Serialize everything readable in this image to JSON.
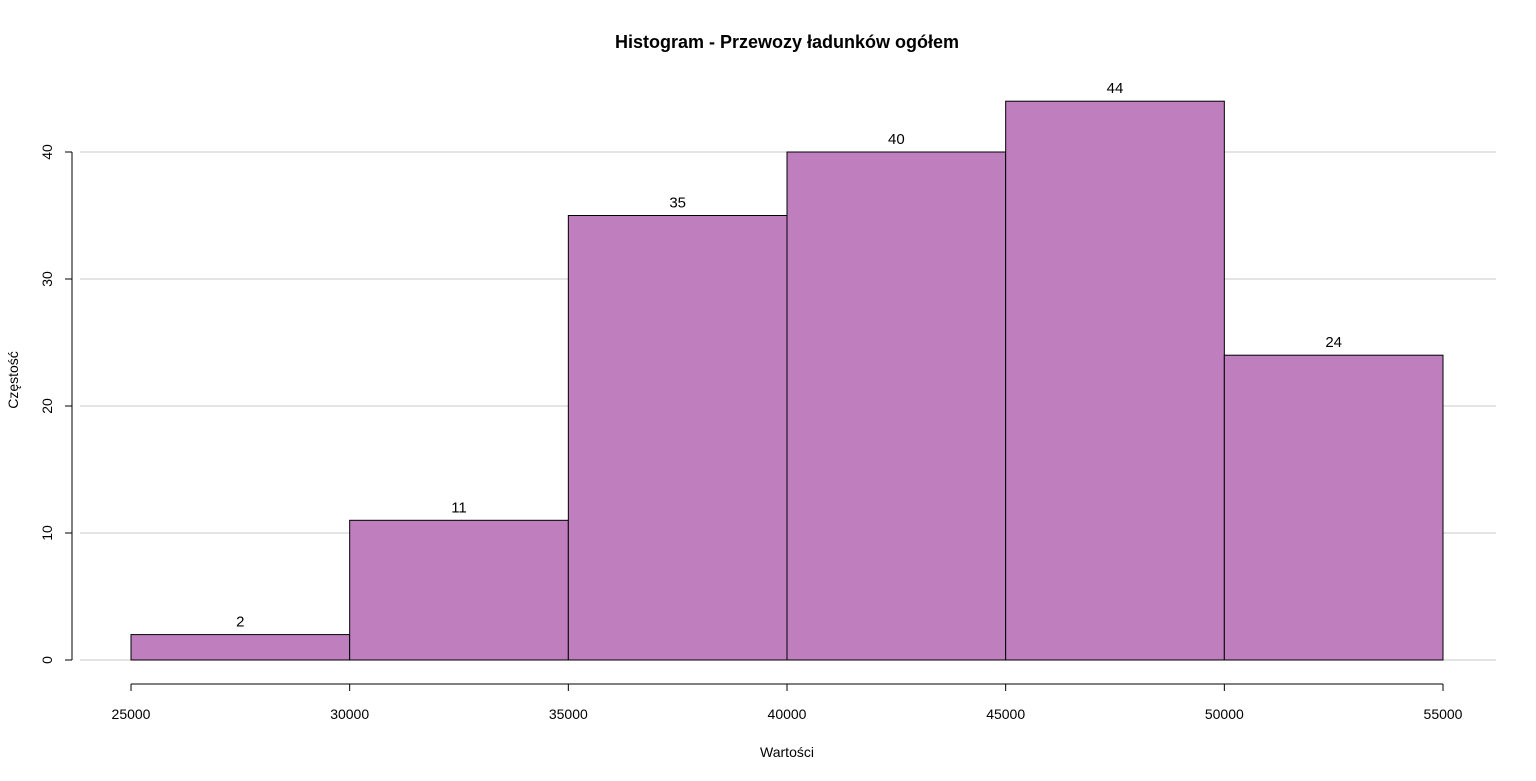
{
  "chart_data": {
    "type": "bar",
    "title": "Histogram - Przewozy ładunków ogółem",
    "xlabel": "Wartości",
    "ylabel": "Częstość",
    "bin_edges": [
      25000,
      30000,
      35000,
      40000,
      45000,
      50000,
      55000
    ],
    "values": [
      2,
      11,
      35,
      40,
      44,
      24
    ],
    "data_labels": [
      "2",
      "11",
      "35",
      "40",
      "44",
      "24"
    ],
    "xlim": [
      25000,
      55000
    ],
    "ylim": [
      0,
      44
    ],
    "x_ticks": [
      25000,
      30000,
      35000,
      40000,
      45000,
      50000,
      55000
    ],
    "x_tick_labels": [
      "25000",
      "30000",
      "35000",
      "40000",
      "45000",
      "50000",
      "55000"
    ],
    "y_ticks": [
      0,
      10,
      20,
      30,
      40
    ],
    "y_tick_labels": [
      "0",
      "10",
      "20",
      "30",
      "40"
    ],
    "grid": "horizontal",
    "bar_color": "#bf7fbf",
    "bar_border_color": "#000000",
    "grid_color": "#c8c8c8"
  }
}
